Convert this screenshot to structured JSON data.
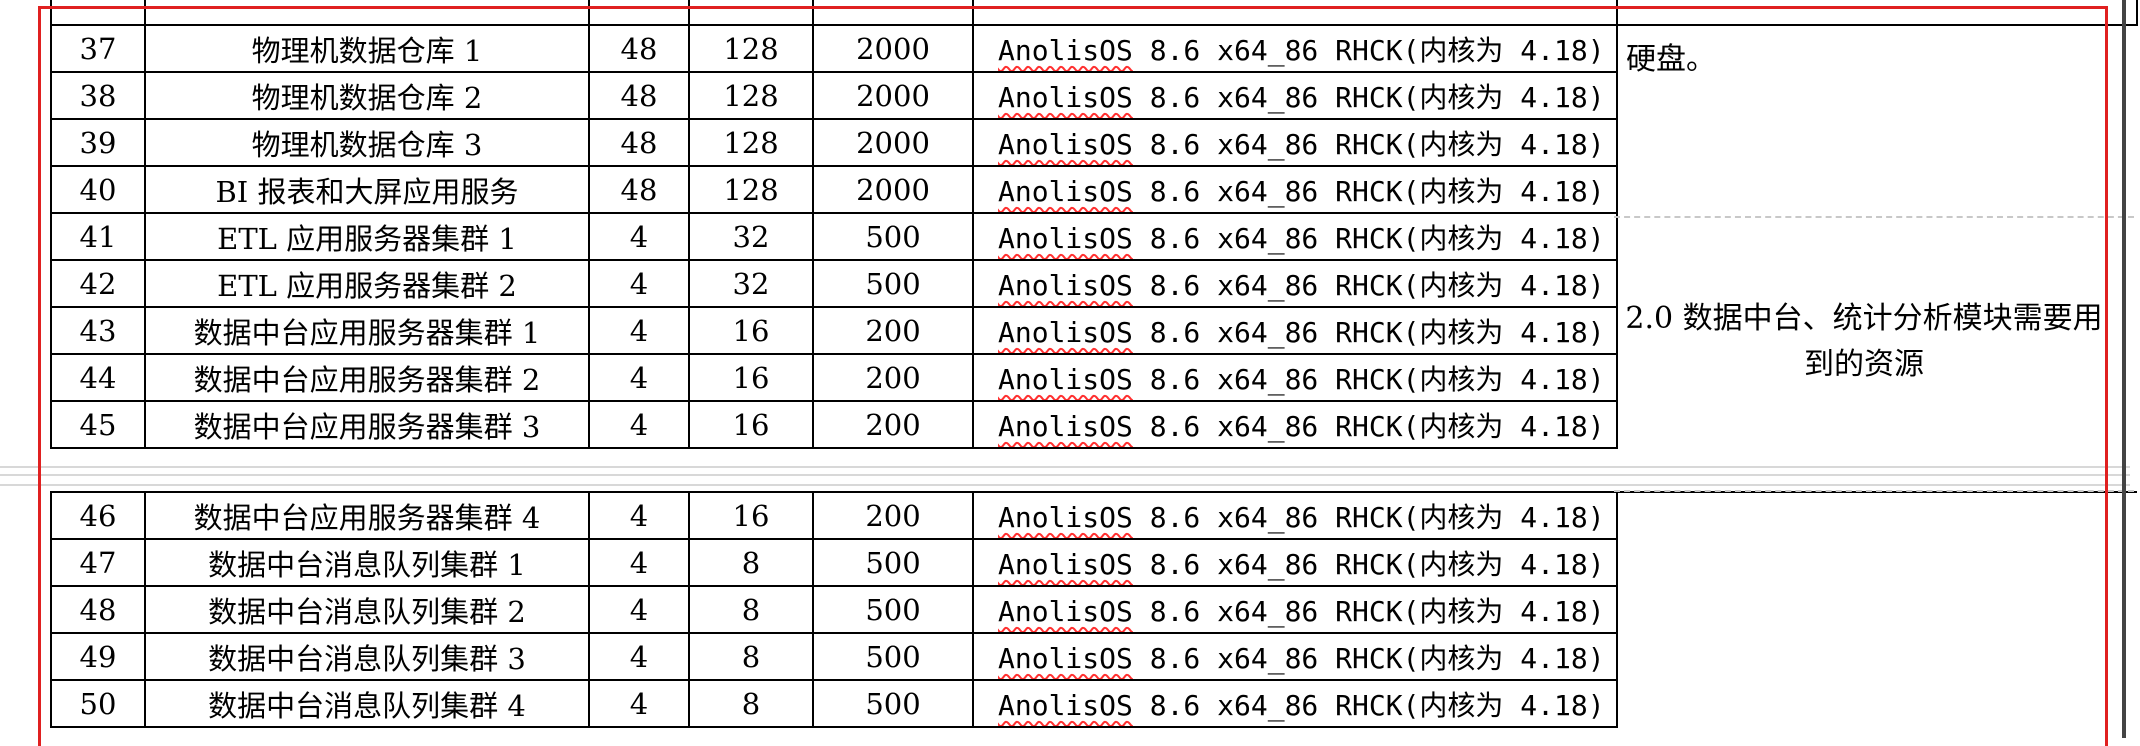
{
  "top_rows": [
    {
      "no": "37",
      "name": "物理机数据仓库 1",
      "cpu": "48",
      "mem": "128",
      "disk": "2000",
      "os_vendor": "AnolisOS",
      "os_rest": " 8.6 x64_86 RHCK(内核为 4.18)"
    },
    {
      "no": "38",
      "name": "物理机数据仓库 2",
      "cpu": "48",
      "mem": "128",
      "disk": "2000",
      "os_vendor": "AnolisOS",
      "os_rest": " 8.6 x64_86 RHCK(内核为 4.18)"
    },
    {
      "no": "39",
      "name": "物理机数据仓库 3",
      "cpu": "48",
      "mem": "128",
      "disk": "2000",
      "os_vendor": "AnolisOS",
      "os_rest": " 8.6 x64_86 RHCK(内核为 4.18)"
    },
    {
      "no": "40",
      "name": "BI 报表和大屏应用服务",
      "cpu": "48",
      "mem": "128",
      "disk": "2000",
      "os_vendor": "AnolisOS",
      "os_rest": " 8.6 x64_86 RHCK(内核为 4.18)"
    },
    {
      "no": "41",
      "name": "ETL 应用服务器集群 1",
      "cpu": "4",
      "mem": "32",
      "disk": "500",
      "os_vendor": "AnolisOS",
      "os_rest": " 8.6 x64_86 RHCK(内核为 4.18)"
    },
    {
      "no": "42",
      "name": "ETL 应用服务器集群 2",
      "cpu": "4",
      "mem": "32",
      "disk": "500",
      "os_vendor": "AnolisOS",
      "os_rest": " 8.6 x64_86 RHCK(内核为 4.18)"
    },
    {
      "no": "43",
      "name": "数据中台应用服务器集群 1",
      "cpu": "4",
      "mem": "16",
      "disk": "200",
      "os_vendor": "AnolisOS",
      "os_rest": " 8.6 x64_86 RHCK(内核为 4.18)"
    },
    {
      "no": "44",
      "name": "数据中台应用服务器集群 2",
      "cpu": "4",
      "mem": "16",
      "disk": "200",
      "os_vendor": "AnolisOS",
      "os_rest": " 8.6 x64_86 RHCK(内核为 4.18)"
    },
    {
      "no": "45",
      "name": "数据中台应用服务器集群 3",
      "cpu": "4",
      "mem": "16",
      "disk": "200",
      "os_vendor": "AnolisOS",
      "os_rest": " 8.6 x64_86 RHCK(内核为 4.18)"
    }
  ],
  "bottom_rows": [
    {
      "no": "46",
      "name": "数据中台应用服务器集群 4",
      "cpu": "4",
      "mem": "16",
      "disk": "200",
      "os_vendor": "AnolisOS",
      "os_rest": " 8.6 x64_86 RHCK(内核为 4.18)"
    },
    {
      "no": "47",
      "name": "数据中台消息队列集群 1",
      "cpu": "4",
      "mem": "8",
      "disk": "500",
      "os_vendor": "AnolisOS",
      "os_rest": " 8.6 x64_86 RHCK(内核为 4.18)"
    },
    {
      "no": "48",
      "name": "数据中台消息队列集群 2",
      "cpu": "4",
      "mem": "8",
      "disk": "500",
      "os_vendor": "AnolisOS",
      "os_rest": " 8.6 x64_86 RHCK(内核为 4.18)"
    },
    {
      "no": "49",
      "name": "数据中台消息队列集群 3",
      "cpu": "4",
      "mem": "8",
      "disk": "500",
      "os_vendor": "AnolisOS",
      "os_rest": " 8.6 x64_86 RHCK(内核为 4.18)"
    },
    {
      "no": "50",
      "name": "数据中台消息队列集群 4",
      "cpu": "4",
      "mem": "8",
      "disk": "500",
      "os_vendor": "AnolisOS",
      "os_rest": " 8.6 x64_86 RHCK(内核为 4.18)"
    }
  ],
  "notes": {
    "top": "硬盘。",
    "middle": "2.0 数据中台、统计分析模块需要用到的资源"
  },
  "colors": {
    "selection_frame": "#e02020",
    "spell_underline": "#ff3030"
  }
}
